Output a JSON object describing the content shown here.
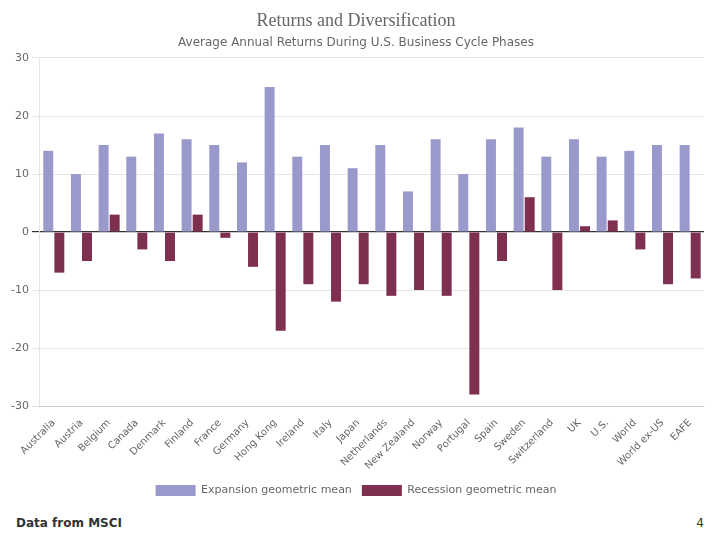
{
  "chart_data": {
    "type": "bar",
    "title": "Returns and Diversification",
    "subtitle": "Average Annual Returns During U.S. Business Cycle Phases",
    "categories": [
      "Australia",
      "Austria",
      "Belgium",
      "Canada",
      "Denmark",
      "Finland",
      "France",
      "Germany",
      "Hong Kong",
      "Ireland",
      "Italy",
      "Japan",
      "Netherlands",
      "New Zealand",
      "Norway",
      "Portugal",
      "Spain",
      "Sweden",
      "Switzerland",
      "UK",
      "U.S.",
      "World",
      "World ex-US",
      "EAFE"
    ],
    "series": [
      {
        "name": "Expansion geometric mean",
        "color": "#9999cc",
        "values": [
          14,
          10,
          15,
          13,
          17,
          16,
          15,
          12,
          25,
          13,
          15,
          11,
          15,
          7,
          16,
          10,
          16,
          18,
          13,
          16,
          13,
          14,
          15,
          15
        ]
      },
      {
        "name": "Recession geometric mean",
        "color": "#7f3050",
        "values": [
          -7,
          -5,
          3,
          -3,
          -5,
          3,
          -1,
          -6,
          -17,
          -9,
          -12,
          -9,
          -11,
          -10,
          -11,
          -28,
          -5,
          6,
          -10,
          1,
          2,
          -3,
          -9,
          -8
        ]
      }
    ],
    "ylim": [
      -30,
      30
    ],
    "yticks": [
      -30,
      -20,
      -10,
      0,
      10,
      20,
      30
    ],
    "grid": true,
    "legend": "bottom",
    "annotations": [
      "Data from MSCI",
      "4"
    ]
  }
}
